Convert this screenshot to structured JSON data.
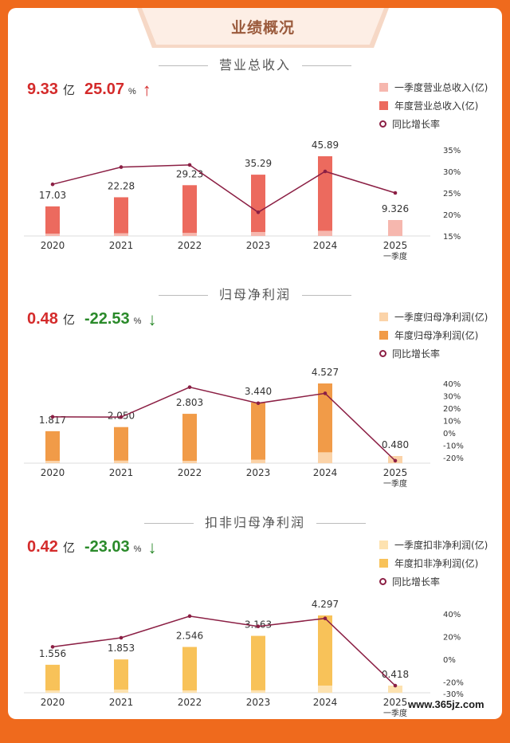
{
  "header": {
    "title": "业绩概况"
  },
  "watermark": "www.365jz.com",
  "sections": [
    {
      "title": "营业总收入",
      "kpi": {
        "value": "9.33",
        "unit": "亿",
        "growth": "25.07",
        "growth_unit": "%",
        "direction": "up",
        "value_color": "#d42b2b",
        "growth_color": "#d42b2b"
      },
      "legend": [
        "一季度营业总收入(亿)",
        "年度营业总收入(亿)",
        "同比增长率"
      ],
      "colors": {
        "q1": "#f6b7ae",
        "annual": "#ec6a5e",
        "line": "#8b1f44"
      }
    },
    {
      "title": "归母净利润",
      "kpi": {
        "value": "0.48",
        "unit": "亿",
        "growth": "-22.53",
        "growth_unit": "%",
        "direction": "down",
        "value_color": "#d42b2b",
        "growth_color": "#2a8a2a"
      },
      "legend": [
        "一季度归母净利润(亿)",
        "年度归母净利润(亿)",
        "同比增长率"
      ],
      "colors": {
        "q1": "#fbd3a8",
        "annual": "#f19b48",
        "line": "#8b1f44"
      }
    },
    {
      "title": "扣非归母净利润",
      "kpi": {
        "value": "0.42",
        "unit": "亿",
        "growth": "-23.03",
        "growth_unit": "%",
        "direction": "down",
        "value_color": "#d42b2b",
        "growth_color": "#2a8a2a"
      },
      "legend": [
        "一季度扣非净利润(亿)",
        "年度扣非净利润(亿)",
        "同比增长率"
      ],
      "colors": {
        "q1": "#fde2b0",
        "annual": "#f8c259",
        "line": "#8b1f44"
      }
    }
  ],
  "chart_data": [
    {
      "type": "bar",
      "title": "营业总收入",
      "categories": [
        "2020",
        "2021",
        "2022",
        "2023",
        "2024",
        "2025\n一季度"
      ],
      "series": [
        {
          "name": "一季度营业总收入(亿)",
          "values": [
            1.2,
            1.6,
            1.8,
            2.3,
            3.0,
            9.326
          ]
        },
        {
          "name": "年度营业总收入(亿)",
          "values": [
            17.03,
            22.28,
            29.23,
            35.29,
            45.89,
            null
          ]
        },
        {
          "name": "同比增长率",
          "values": [
            27,
            31,
            31.5,
            20.5,
            30,
            25
          ],
          "axis": "right"
        }
      ],
      "bar_labels": [
        "17.03",
        "22.28",
        "29.23",
        "35.29",
        "45.89",
        "9.326"
      ],
      "y2_ticks": [
        "35%",
        "30%",
        "25%",
        "20%",
        "15%"
      ],
      "y2_range": [
        15,
        35
      ]
    },
    {
      "type": "bar",
      "title": "归母净利润",
      "categories": [
        "2020",
        "2021",
        "2022",
        "2023",
        "2024",
        "2025\n一季度"
      ],
      "series": [
        {
          "name": "一季度归母净利润(亿)",
          "values": [
            0.05,
            0.15,
            0.1,
            0.2,
            0.62,
            0.48
          ]
        },
        {
          "name": "年度归母净利润(亿)",
          "values": [
            1.817,
            2.05,
            2.803,
            3.44,
            4.527,
            null
          ]
        },
        {
          "name": "同比增长率",
          "values": [
            13,
            12.8,
            37,
            24,
            32,
            -22.53
          ],
          "axis": "right"
        }
      ],
      "bar_labels": [
        "1.817",
        "2.050",
        "2.803",
        "3.440",
        "4.527",
        "0.480"
      ],
      "y2_ticks": [
        "40%",
        "30%",
        "20%",
        "10%",
        "0%",
        "-10%",
        "-20%"
      ],
      "y2_range": [
        -20,
        40
      ]
    },
    {
      "type": "bar",
      "title": "扣非归母净利润",
      "categories": [
        "2020",
        "2021",
        "2022",
        "2023",
        "2024",
        "2025\n一季度"
      ],
      "series": [
        {
          "name": "一季度扣非净利润(亿)",
          "values": [
            0.04,
            0.18,
            0.06,
            0.14,
            0.4,
            0.418
          ]
        },
        {
          "name": "年度扣非净利润(亿)",
          "values": [
            1.556,
            1.853,
            2.546,
            3.163,
            4.297,
            null
          ]
        },
        {
          "name": "同比增长率",
          "values": [
            11,
            19,
            38,
            29,
            36,
            -23.03
          ],
          "axis": "right"
        }
      ],
      "bar_labels": [
        "1.556",
        "1.853",
        "2.546",
        "3.163",
        "4.297",
        "0.418"
      ],
      "y2_ticks": [
        "40%",
        "20%",
        "0%",
        "-20%",
        "-30%"
      ],
      "y2_range": [
        -30,
        40
      ]
    }
  ]
}
